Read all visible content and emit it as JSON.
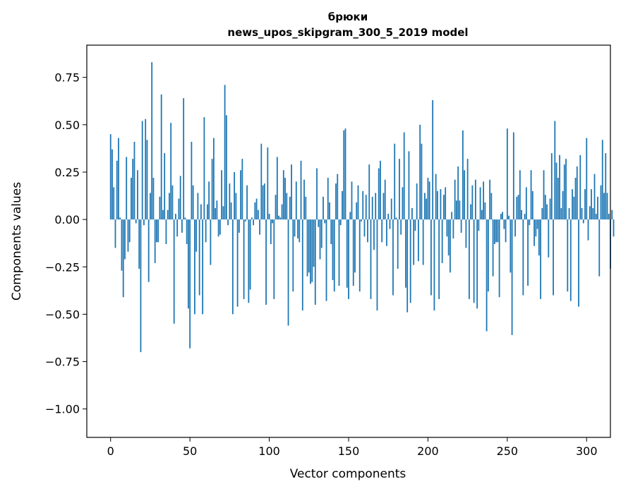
{
  "chart_data": {
    "type": "bar",
    "title": "брюки",
    "subtitle": "news_upos_skipgram_300_5_2019 model",
    "xlabel": "Vector components",
    "ylabel": "Components values",
    "xlim": [
      -15,
      315
    ],
    "ylim": [
      -1.15,
      0.92
    ],
    "xticks": [
      0,
      50,
      100,
      150,
      200,
      250,
      300
    ],
    "xtick_labels": [
      "0",
      "50",
      "100",
      "150",
      "200",
      "250",
      "300"
    ],
    "yticks": [
      0.75,
      0.5,
      0.25,
      0.0,
      -0.25,
      -0.5,
      -0.75,
      -1.0
    ],
    "ytick_labels": [
      "0.75",
      "0.50",
      "0.25",
      "0.00",
      "−0.25",
      "−0.50",
      "−0.75",
      "−1.00"
    ],
    "bar_color": "#1f77b4",
    "x_start": 0,
    "values": [
      0.45,
      0.37,
      0.17,
      -0.15,
      0.31,
      0.43,
      0.01,
      -0.27,
      -0.41,
      -0.21,
      0.33,
      -0.17,
      -0.12,
      0.22,
      0.32,
      0.41,
      -0.02,
      0.26,
      -0.26,
      -0.7,
      0.52,
      -0.03,
      0.53,
      0.42,
      -0.33,
      0.14,
      0.83,
      0.22,
      -0.23,
      -0.12,
      -0.12,
      0.12,
      0.66,
      0.05,
      0.35,
      -0.13,
      0.05,
      0.14,
      0.51,
      0.18,
      -0.55,
      0.03,
      -0.09,
      0.11,
      0.23,
      -0.07,
      0.64,
      0.01,
      -0.13,
      -0.47,
      -0.68,
      0.41,
      0.18,
      -0.5,
      -0.17,
      0.14,
      -0.4,
      0.08,
      -0.5,
      0.54,
      -0.12,
      0.08,
      0.2,
      -0.24,
      0.32,
      0.43,
      0.06,
      0.1,
      -0.09,
      -0.08,
      0.26,
      0.07,
      0.71,
      0.55,
      -0.03,
      0.19,
      0.09,
      -0.5,
      0.25,
      0.14,
      -0.46,
      -0.07,
      0.26,
      0.32,
      -0.42,
      -0.01,
      0.18,
      -0.44,
      -0.37,
      0.01,
      -0.03,
      0.09,
      0.11,
      0.05,
      -0.08,
      0.4,
      0.18,
      0.19,
      -0.45,
      0.38,
      0.03,
      -0.13,
      -0.02,
      -0.42,
      0.13,
      0.33,
      0.02,
      0.01,
      0.08,
      0.26,
      0.22,
      0.14,
      -0.56,
      0.12,
      0.29,
      -0.38,
      -0.09,
      0.2,
      -0.1,
      -0.12,
      0.31,
      -0.48,
      0.21,
      0.12,
      -0.3,
      -0.28,
      -0.34,
      -0.33,
      -0.25,
      -0.45,
      0.27,
      -0.04,
      -0.21,
      -0.15,
      0.12,
      -0.02,
      -0.43,
      0.22,
      0.09,
      -0.13,
      -0.32,
      -0.38,
      0.19,
      0.24,
      -0.35,
      -0.03,
      0.15,
      0.47,
      0.48,
      -0.36,
      -0.42,
      0.04,
      0.2,
      -0.35,
      -0.28,
      0.09,
      0.18,
      -0.38,
      -0.01,
      0.15,
      -0.09,
      0.13,
      -0.12,
      0.29,
      -0.42,
      0.12,
      -0.16,
      0.14,
      -0.48,
      0.27,
      0.31,
      -0.12,
      0.14,
      0.21,
      -0.14,
      0.03,
      -0.05,
      0.11,
      -0.4,
      0.4,
      0.01,
      -0.26,
      0.32,
      -0.08,
      0.17,
      0.46,
      -0.36,
      -0.49,
      0.36,
      -0.44,
      0.06,
      -0.24,
      -0.06,
      0.19,
      -0.22,
      0.5,
      0.4,
      -0.24,
      0.14,
      0.11,
      0.22,
      0.2,
      -0.4,
      0.63,
      -0.48,
      0.24,
      0.15,
      -0.42,
      0.16,
      -0.23,
      0.13,
      0.17,
      -0.09,
      -0.19,
      -0.28,
      0.04,
      -0.1,
      0.21,
      0.1,
      0.28,
      0.1,
      -0.07,
      0.47,
      0.26,
      -0.15,
      0.32,
      -0.42,
      0.08,
      0.18,
      -0.44,
      0.21,
      -0.47,
      -0.06,
      0.17,
      0.05,
      0.2,
      0.09,
      -0.59,
      -0.38,
      0.21,
      0.14,
      -0.3,
      -0.13,
      -0.12,
      -0.12,
      -0.41,
      0.03,
      0.04,
      -0.05,
      -0.12,
      0.48,
      0.02,
      -0.28,
      -0.61,
      0.46,
      -0.09,
      0.12,
      0.13,
      0.26,
      0.05,
      -0.4,
      0.03,
      0.17,
      -0.35,
      -0.03,
      0.26,
      0.15,
      -0.14,
      -0.09,
      -0.05,
      -0.19,
      -0.42,
      0.06,
      0.26,
      0.13,
      0.08,
      -0.2,
      0.11,
      0.35,
      -0.4,
      0.52,
      0.3,
      0.22,
      0.34,
      0.06,
      0.15,
      0.29,
      0.32,
      -0.38,
      0.06,
      -0.43,
      0.16,
      0.12,
      0.22,
      0.28,
      -0.46,
      0.34,
      0.06,
      -0.02,
      0.16,
      0.43,
      -0.11,
      0.07,
      0.16,
      0.06,
      0.24,
      0.03,
      0.12,
      -0.3,
      0.18,
      0.42,
      0.14,
      0.35,
      0.14,
      0.03,
      -0.26,
      0.05,
      -0.09
    ]
  }
}
